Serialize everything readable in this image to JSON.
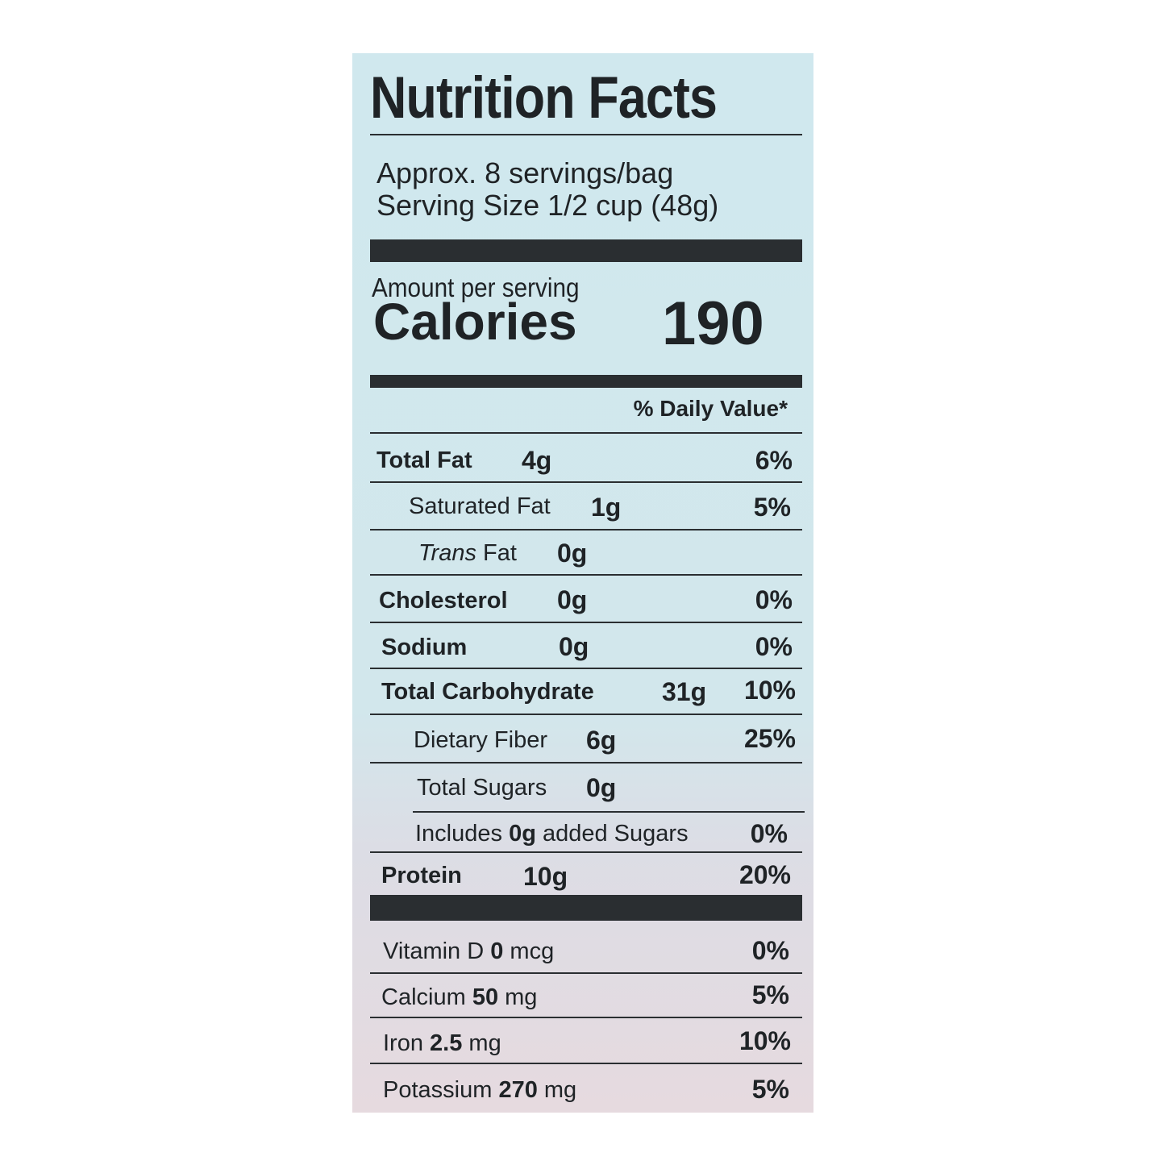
{
  "title": "Nutrition Facts",
  "servings_per_container": "Approx. 8 servings/bag",
  "serving_size": "Serving Size 1/2 cup (48g)",
  "amount_per_serving": "Amount per serving",
  "calories_label": "Calories",
  "calories_value": "190",
  "daily_value_header": "% Daily Value*",
  "nutrients": {
    "total_fat": {
      "label": "Total Fat",
      "amount": "4g",
      "dv": "6%"
    },
    "saturated_fat": {
      "label": "Saturated Fat",
      "amount": "1g",
      "dv": "5%"
    },
    "trans_fat": {
      "label_italic": "Trans",
      "label_rest": " Fat",
      "amount": "0g"
    },
    "cholesterol": {
      "label": "Cholesterol",
      "amount": "0g",
      "dv": "0%"
    },
    "sodium": {
      "label": "Sodium",
      "amount": "0g",
      "dv": "0%"
    },
    "total_carbohydrate": {
      "label": "Total Carbohydrate",
      "amount": "31g",
      "dv": "10%"
    },
    "dietary_fiber": {
      "label": "Dietary Fiber",
      "amount": "6g",
      "dv": "25%"
    },
    "total_sugars": {
      "label": "Total Sugars",
      "amount": "0g"
    },
    "added_sugars": {
      "prefix": "Includes ",
      "amount": "0g",
      "suffix": " added Sugars",
      "dv": "0%"
    },
    "protein": {
      "label": "Protein",
      "amount": "10g",
      "dv": "20%"
    }
  },
  "vitamins": {
    "vitamin_d": {
      "label": "Vitamin D ",
      "amount": "0",
      "unit": " mcg",
      "dv": "0%"
    },
    "calcium": {
      "label": "Calcium ",
      "amount": "50",
      "unit": " mg",
      "dv": "5%"
    },
    "iron": {
      "label": "Iron ",
      "amount": "2.5",
      "unit": " mg",
      "dv": "10%"
    },
    "potassium": {
      "label": "Potassium ",
      "amount": "270",
      "unit": " mg",
      "dv": "5%"
    }
  }
}
